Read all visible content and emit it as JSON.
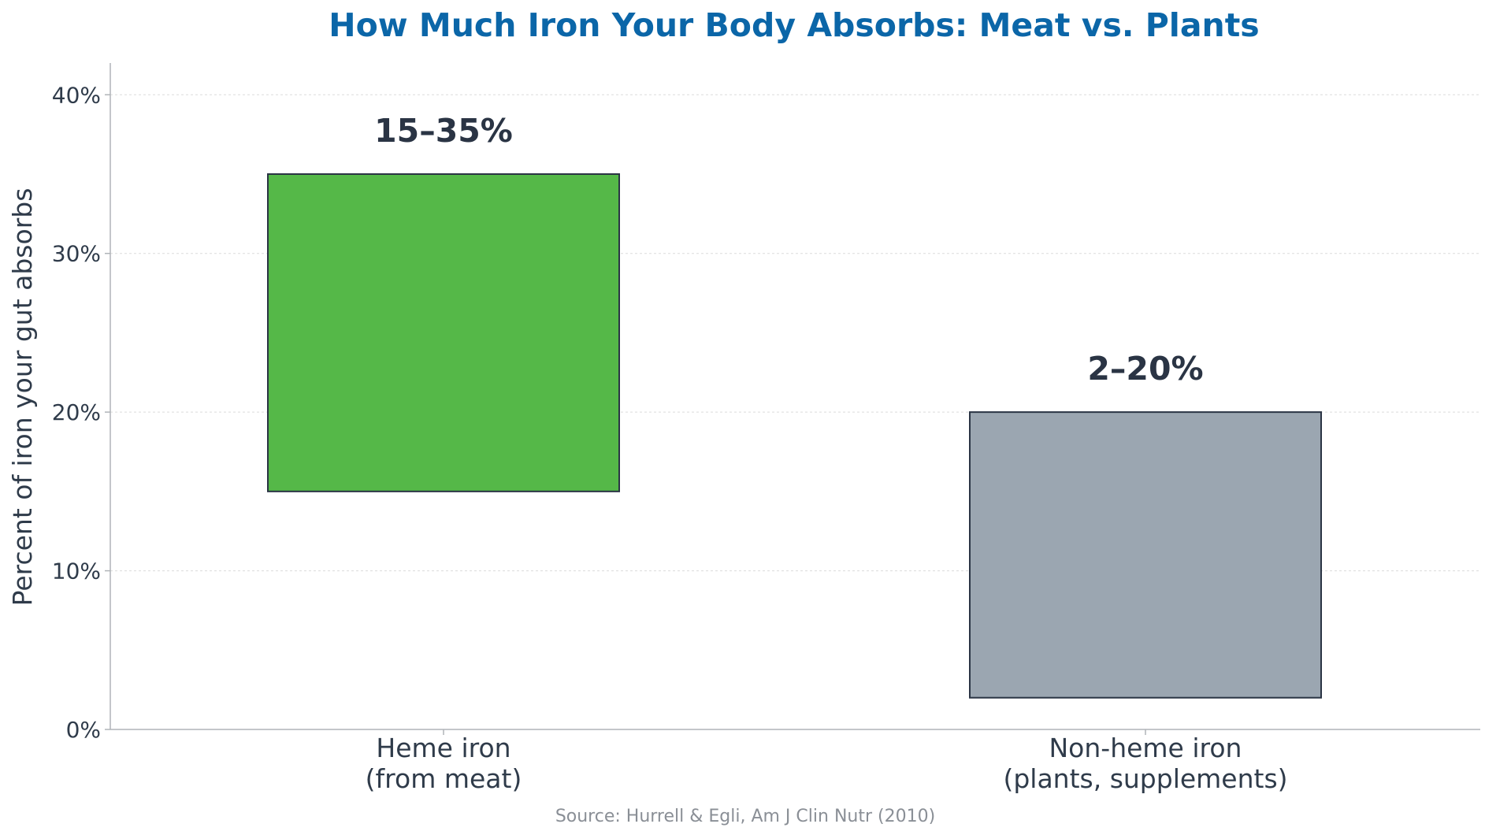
{
  "chart_data": {
    "type": "bar",
    "title": "How Much Iron Your Body Absorbs: Meat vs. Plants",
    "ylabel": "Percent of iron your gut absorbs",
    "xlabel": "",
    "ylim": [
      0,
      42
    ],
    "yticks": [
      {
        "value": 0,
        "label": "0%"
      },
      {
        "value": 10,
        "label": "10%"
      },
      {
        "value": 20,
        "label": "20%"
      },
      {
        "value": 30,
        "label": "30%"
      },
      {
        "value": 40,
        "label": "40%"
      }
    ],
    "grid": "horizontal",
    "categories": [
      {
        "line1": "Heme iron",
        "line2": "(from meat)",
        "low": 15,
        "high": 35,
        "label": "15–35%",
        "color": "#55b848"
      },
      {
        "line1": "Non-heme iron",
        "line2": "(plants, supplements)",
        "low": 2,
        "high": 20,
        "label": "2–20%",
        "color": "#9ba6b1"
      }
    ],
    "source": "Source: Hurrell & Egli, Am J Clin Nutr (2010)"
  },
  "colors": {
    "title": "#0b66a8",
    "text": "#2f3b4a",
    "bar_edge": "#2a3444",
    "grid": "#dcdcdc",
    "axis": "#b0b4b8",
    "source": "#8a8f96"
  }
}
